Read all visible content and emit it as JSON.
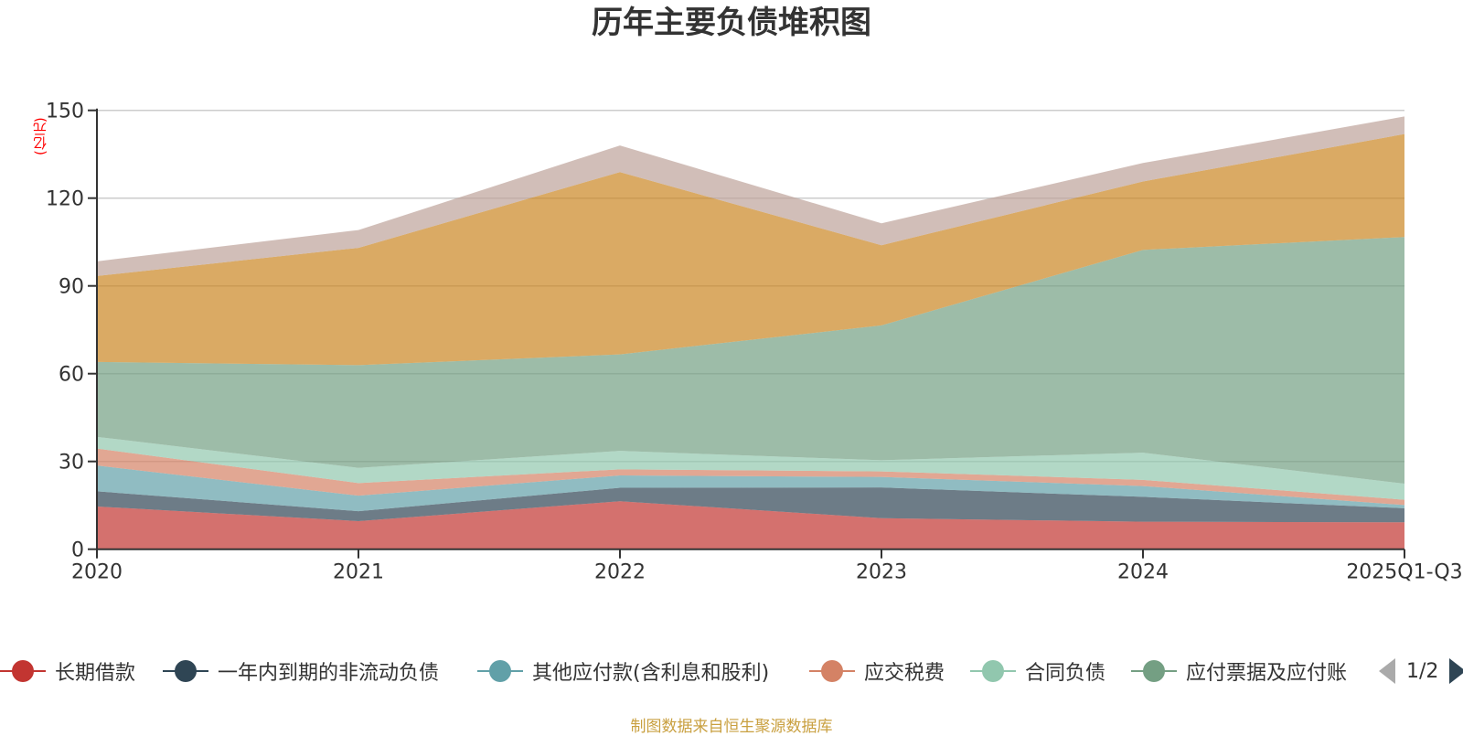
{
  "chart_data": {
    "type": "area",
    "stacked": true,
    "title": "历年主要负债堆积图",
    "ylabel": "(亿元)",
    "xlabel": "",
    "categories": [
      "2020",
      "2021",
      "2022",
      "2023",
      "2024",
      "2025Q1-Q3"
    ],
    "ylim": [
      0,
      150
    ],
    "yticks": [
      0,
      30,
      60,
      90,
      120,
      150
    ],
    "grid": true,
    "legend_position": "bottom",
    "series": [
      {
        "name": "长期借款",
        "color": "#c23531",
        "values": [
          14.6,
          9.6,
          16.4,
          10.6,
          9.4,
          9.2
        ]
      },
      {
        "name": "一年内到期的非流动负债",
        "color": "#2f4554",
        "values": [
          5.2,
          3.4,
          4.6,
          10.5,
          8.5,
          4.8
        ]
      },
      {
        "name": "其他应付款(含利息和股利)",
        "color": "#61a0a8",
        "values": [
          8.8,
          5.3,
          4.2,
          3.6,
          3.7,
          1.1
        ]
      },
      {
        "name": "应交税费",
        "color": "#d48265",
        "values": [
          5.8,
          4.3,
          2.1,
          1.9,
          2.1,
          1.8
        ]
      },
      {
        "name": "合同负债",
        "color": "#91c7ae",
        "values": [
          4.0,
          5.2,
          6.3,
          3.8,
          9.3,
          5.5
        ]
      },
      {
        "name": "应付票据及应付账款",
        "color": "#749f83",
        "values": [
          25.6,
          35.1,
          33.0,
          46.1,
          69.3,
          84.3
        ]
      },
      {
        "name": "",
        "color": "#ca8622",
        "values": [
          29.4,
          40.1,
          62.3,
          27.4,
          23.4,
          35.2
        ]
      },
      {
        "name": "",
        "color": "#bda29a",
        "values": [
          5.0,
          6.1,
          9.1,
          7.5,
          6.3,
          6.0
        ]
      }
    ]
  },
  "legend": {
    "items": [
      {
        "label": "长期借款",
        "color": "#c23531"
      },
      {
        "label": "一年内到期的非流动负债",
        "color": "#2f4554"
      },
      {
        "label": "其他应付款(含利息和股利)",
        "color": "#61a0a8"
      },
      {
        "label": "应交税费",
        "color": "#d48265"
      },
      {
        "label": "合同负债",
        "color": "#91c7ae"
      },
      {
        "label": "应付票据及应付账",
        "color": "#749f83"
      }
    ],
    "page_text": "1/2"
  },
  "footer": "制图数据来自恒生聚源数据库"
}
